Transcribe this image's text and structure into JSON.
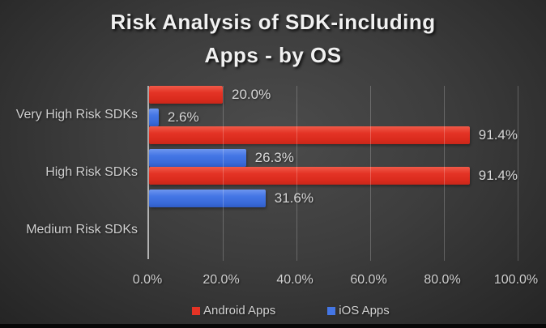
{
  "header": {
    "title_lines": [
      "Risk Analysis of SDK-including",
      "Apps - by OS"
    ]
  },
  "chart_data": {
    "type": "bar",
    "orientation": "horizontal",
    "title": "Risk Analysis of SDK-including Apps - by OS",
    "categories": [
      "Very High Risk SDKs",
      "High Risk SDKs",
      "Medium Risk SDKs"
    ],
    "series": [
      {
        "name": "Android Apps",
        "color": "#e43325",
        "values": [
          20.0,
          91.4,
          91.4
        ],
        "labels": [
          "20.0%",
          "91.4%",
          "91.4%"
        ]
      },
      {
        "name": "iOS Apps",
        "color": "#4476e5",
        "values": [
          2.6,
          26.3,
          31.6
        ],
        "labels": [
          "2.6%",
          "26.3%",
          "31.6%"
        ]
      }
    ],
    "x_axis": {
      "ticks": [
        "0.0%",
        "20.0%",
        "40.0%",
        "60.0%",
        "80.0%",
        "100.0%"
      ],
      "min": 0,
      "max": 100
    },
    "legend": {
      "position": "bottom",
      "entries": [
        "Android Apps",
        "iOS Apps"
      ]
    },
    "grid": true,
    "background": "dark-radial-gradient"
  }
}
